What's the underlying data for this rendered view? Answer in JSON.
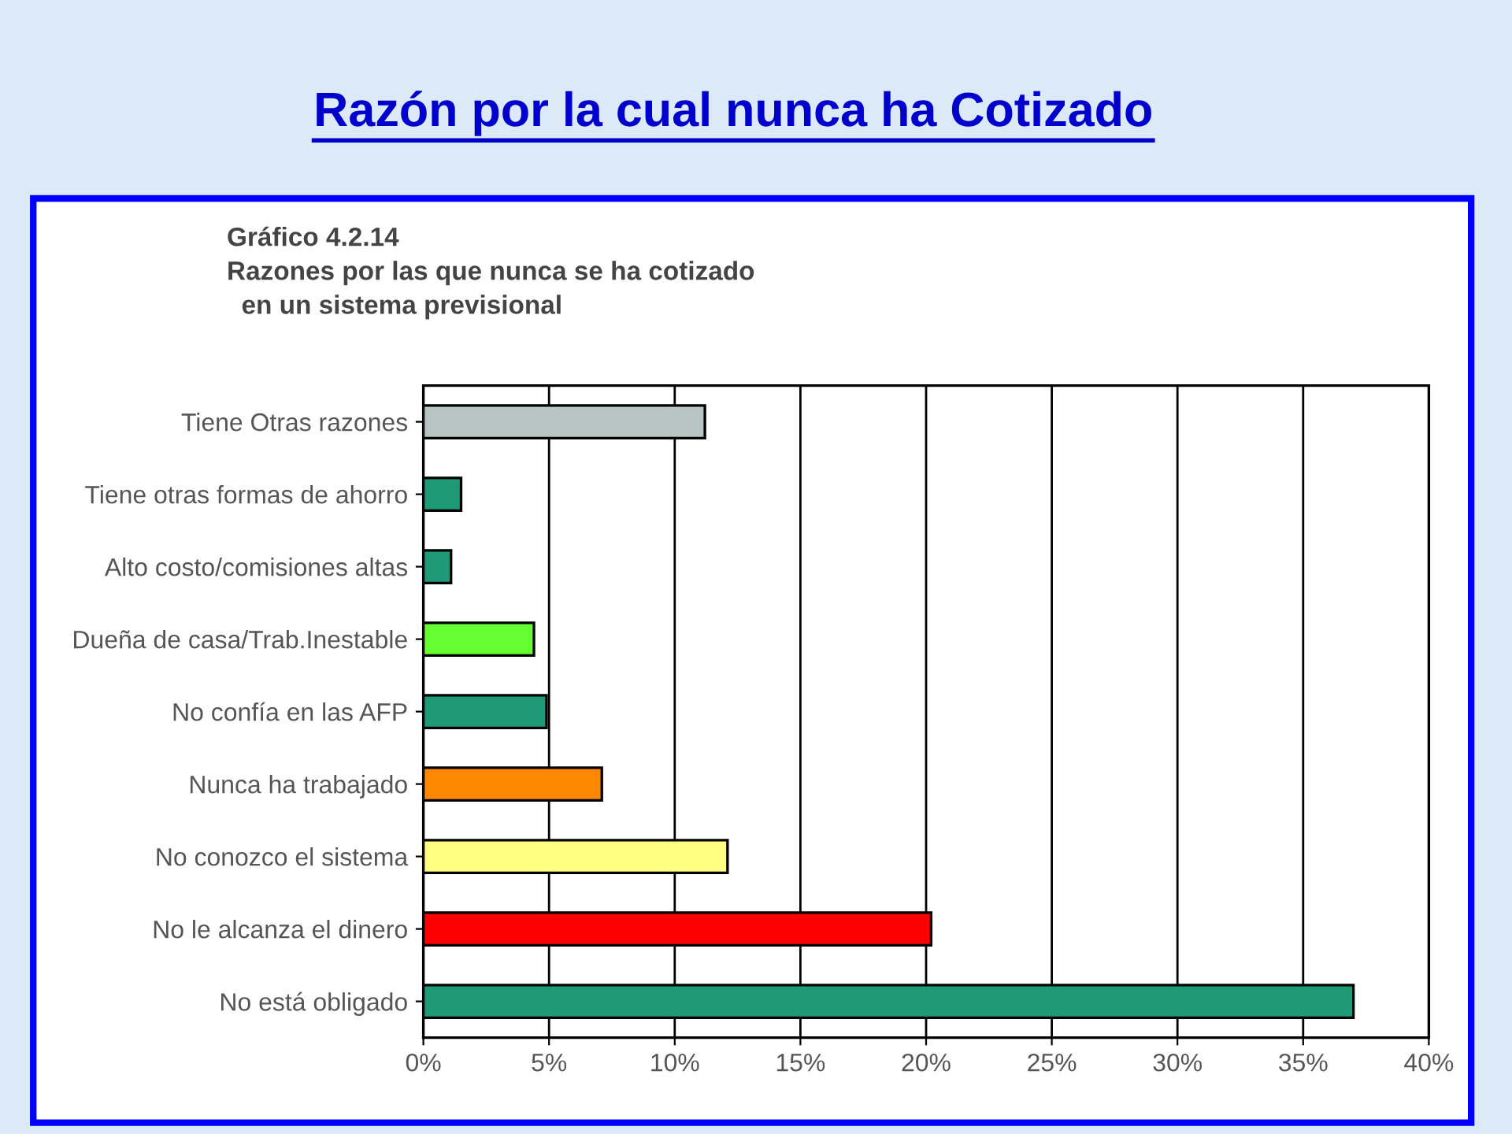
{
  "chart_data": {
    "type": "bar",
    "orientation": "horizontal",
    "title": "Razón por la cual nunca ha Cotizado",
    "subtitle": "Gráfico 4.2.14\nRazones por las que nunca se ha cotizado\n  en un sistema previsional",
    "categories": [
      "Tiene Otras razones",
      "Tiene otras formas de ahorro",
      "Alto costo/comisiones altas",
      "Dueña de casa/Trab.Inestable",
      "No confía en las AFP",
      "Nunca ha trabajado",
      "No conozco el sistema",
      "No le alcanza el dinero",
      "No está obligado"
    ],
    "values": [
      11.2,
      1.5,
      1.1,
      4.4,
      4.9,
      7.1,
      12.1,
      20.2,
      37.0
    ],
    "colors": [
      "#b8c4c4",
      "#1f9a78",
      "#1f9a78",
      "#66ff33",
      "#1f9a78",
      "#ff8800",
      "#ffff80",
      "#ff0000",
      "#1f9a78"
    ],
    "xlim": [
      0,
      40
    ],
    "xticks": [
      {
        "value": 0,
        "label": "0%"
      },
      {
        "value": 5,
        "label": "5%"
      },
      {
        "value": 10,
        "label": "10%"
      },
      {
        "value": 15,
        "label": "15%"
      },
      {
        "value": 20,
        "label": "20%"
      },
      {
        "value": 25,
        "label": "25%"
      },
      {
        "value": 30,
        "label": "30%"
      },
      {
        "value": 35,
        "label": "35%"
      },
      {
        "value": 40,
        "label": "40%"
      }
    ],
    "grid": "x"
  }
}
